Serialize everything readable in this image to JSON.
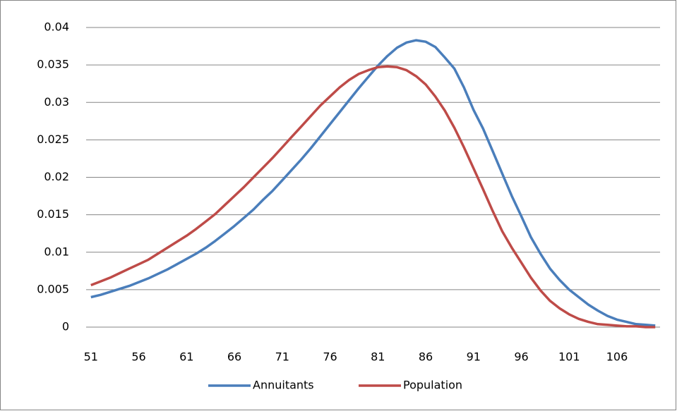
{
  "chart_data": {
    "type": "line",
    "categories": [
      "51",
      null,
      null,
      null,
      null,
      "56",
      null,
      null,
      null,
      null,
      "61",
      null,
      null,
      null,
      null,
      "66",
      null,
      null,
      null,
      null,
      "71",
      null,
      null,
      null,
      null,
      "76",
      null,
      null,
      null,
      null,
      "81",
      null,
      null,
      null,
      null,
      "86",
      null,
      null,
      null,
      null,
      "91",
      null,
      null,
      null,
      null,
      "96",
      null,
      null,
      null,
      null,
      "101",
      null,
      null,
      null,
      null,
      "106",
      null,
      null,
      null,
      null
    ],
    "series": [
      {
        "name": "Annuitants",
        "color": "#4a7ebb",
        "values": [
          0.004,
          0.0043,
          0.0047,
          0.0051,
          0.0055,
          0.006,
          0.0065,
          0.0071,
          0.0077,
          0.0084,
          0.0091,
          0.0098,
          0.0106,
          0.0115,
          0.0125,
          0.0135,
          0.0146,
          0.0157,
          0.017,
          0.0182,
          0.0196,
          0.021,
          0.0224,
          0.0239,
          0.0255,
          0.0271,
          0.0287,
          0.0303,
          0.0319,
          0.0334,
          0.0349,
          0.0362,
          0.0373,
          0.038,
          0.0383,
          0.0381,
          0.0374,
          0.036,
          0.0345,
          0.032,
          0.029,
          0.0265,
          0.0235,
          0.0205,
          0.0175,
          0.0148,
          0.012,
          0.0098,
          0.0078,
          0.0063,
          0.005,
          0.004,
          0.003,
          0.0022,
          0.0015,
          0.001,
          0.0007,
          0.0004,
          0.0003,
          0.0002
        ]
      },
      {
        "name": "Population",
        "color": "#be4b48",
        "values": [
          0.0056,
          0.0061,
          0.0066,
          0.0072,
          0.0078,
          0.0084,
          0.009,
          0.0098,
          0.0106,
          0.0114,
          0.0122,
          0.0131,
          0.0141,
          0.0151,
          0.0163,
          0.0175,
          0.0187,
          0.02,
          0.0213,
          0.0226,
          0.024,
          0.0254,
          0.0268,
          0.0282,
          0.0296,
          0.0308,
          0.032,
          0.033,
          0.0338,
          0.0343,
          0.0347,
          0.0348,
          0.0347,
          0.0343,
          0.0335,
          0.0324,
          0.0308,
          0.0289,
          0.0266,
          0.024,
          0.0212,
          0.0184,
          0.0155,
          0.0128,
          0.0106,
          0.0086,
          0.0066,
          0.0049,
          0.0035,
          0.0025,
          0.0017,
          0.0011,
          0.0007,
          0.0004,
          0.0003,
          0.0002,
          0.0001,
          0.0001,
          0,
          0
        ]
      }
    ],
    "ylim": [
      0,
      0.04
    ],
    "yticks": [
      0,
      0.005,
      0.01,
      0.015,
      0.02,
      0.025,
      0.03,
      0.035,
      0.04
    ],
    "grid": true,
    "legend": "bottom"
  }
}
